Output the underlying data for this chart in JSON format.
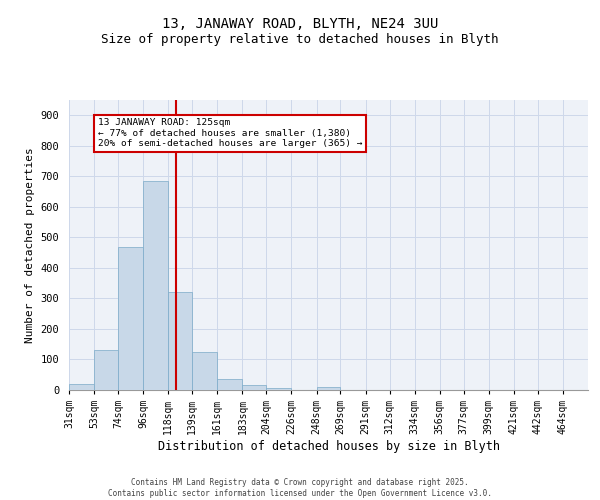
{
  "title1": "13, JANAWAY ROAD, BLYTH, NE24 3UU",
  "title2": "Size of property relative to detached houses in Blyth",
  "xlabel": "Distribution of detached houses by size in Blyth",
  "ylabel": "Number of detached properties",
  "bar_color": "#c8d8e8",
  "bar_edge_color": "#7aaac8",
  "bins": [
    31,
    53,
    74,
    96,
    118,
    139,
    161,
    183,
    204,
    226,
    248,
    269,
    291,
    312,
    334,
    356,
    377,
    399,
    421,
    442,
    464
  ],
  "values": [
    20,
    130,
    470,
    685,
    320,
    125,
    35,
    17,
    5,
    0,
    10,
    0,
    0,
    0,
    0,
    0,
    0,
    0,
    0,
    0
  ],
  "tick_labels": [
    "31sqm",
    "53sqm",
    "74sqm",
    "96sqm",
    "118sqm",
    "139sqm",
    "161sqm",
    "183sqm",
    "204sqm",
    "226sqm",
    "248sqm",
    "269sqm",
    "291sqm",
    "312sqm",
    "334sqm",
    "356sqm",
    "377sqm",
    "399sqm",
    "421sqm",
    "442sqm",
    "464sqm"
  ],
  "red_line_x": 125,
  "annotation_text": "13 JANAWAY ROAD: 125sqm\n← 77% of detached houses are smaller (1,380)\n20% of semi-detached houses are larger (365) →",
  "annotation_box_color": "#cc0000",
  "grid_color": "#cdd8ea",
  "background_color": "#eef2f8",
  "ylim": [
    0,
    950
  ],
  "yticks": [
    0,
    100,
    200,
    300,
    400,
    500,
    600,
    700,
    800,
    900
  ],
  "footer_text": "Contains HM Land Registry data © Crown copyright and database right 2025.\nContains public sector information licensed under the Open Government Licence v3.0.",
  "title1_fontsize": 10,
  "title2_fontsize": 9,
  "tick_fontsize": 7,
  "ylabel_fontsize": 8,
  "xlabel_fontsize": 8.5,
  "footer_fontsize": 5.5
}
